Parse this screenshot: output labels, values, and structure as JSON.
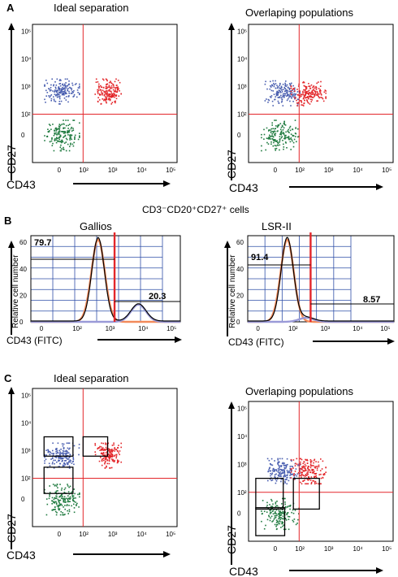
{
  "figure": {
    "panels": [
      {
        "letter": "A",
        "title_left": "Ideal separation",
        "title_right": "Overlaping populations"
      },
      {
        "letter": "B",
        "title_center": "CD3⁻CD20⁺CD27⁺ cells",
        "title_left": "Gallios",
        "title_right": "LSR-II"
      },
      {
        "letter": "C",
        "title_left": "Ideal separation",
        "title_right": "Overlaping populations"
      }
    ],
    "colors": {
      "blue_population": "#4a5fb0",
      "red_population": "#e3262a",
      "green_population": "#1f7a3f",
      "gate_line": "#e3262a",
      "orange_curve": "#f28a5a",
      "lilac_curve": "#9a9ad8",
      "grid_blue": "#2f4fa8"
    }
  },
  "chart_data": [
    {
      "type": "scatter",
      "panel": "A-left",
      "title": "Ideal separation",
      "xlabel": "CD43",
      "ylabel": "CD27",
      "xticks": [
        "0",
        "10²",
        "10³",
        "10⁴",
        "10⁵"
      ],
      "yticks": [
        "0",
        "10²",
        "10³",
        "10⁴",
        "10⁵"
      ],
      "series": [
        {
          "color": "blue",
          "cx": 0,
          "cy": 700
        },
        {
          "color": "red",
          "cx": 700,
          "cy": 700
        },
        {
          "color": "green",
          "cx": 0,
          "cy": 0
        }
      ],
      "gates": {
        "x": 100,
        "y": 100
      }
    },
    {
      "type": "scatter",
      "panel": "A-right",
      "title": "Overlaping populations",
      "xlabel": "CD43",
      "ylabel": "CD27",
      "xticks": [
        "0",
        "10²",
        "10³",
        "10⁴",
        "10⁵"
      ],
      "yticks": [
        "0",
        "10²",
        "10³",
        "10⁴",
        "10⁵"
      ],
      "series": [
        {
          "color": "blue",
          "cx": 20,
          "cy": 600
        },
        {
          "color": "red",
          "cx": 200,
          "cy": 600
        },
        {
          "color": "green",
          "cx": 10,
          "cy": 0
        }
      ],
      "gates": {
        "x": 100,
        "y": 100
      }
    },
    {
      "type": "line",
      "panel": "B-left",
      "title": "Gallios",
      "xlabel": "CD43 (FITC)",
      "ylabel": "Relative cell number",
      "xticks": [
        "0",
        "10²",
        "10³",
        "10⁴",
        "10⁵"
      ],
      "yticks": [
        "0",
        "20",
        "40",
        "60"
      ],
      "ylim": [
        0,
        65
      ],
      "annotations": [
        "79.7",
        "20.3"
      ]
    },
    {
      "type": "line",
      "panel": "B-right",
      "title": "LSR-II",
      "xlabel": "CD43 (FITC)",
      "ylabel": "Relative cell number",
      "xticks": [
        "0",
        "10²",
        "10³",
        "10⁴",
        "10⁵"
      ],
      "yticks": [
        "0",
        "20",
        "40",
        "60"
      ],
      "ylim": [
        0,
        65
      ],
      "annotations": [
        "91.4",
        "8.57"
      ]
    },
    {
      "type": "scatter",
      "panel": "C-left",
      "title": "Ideal separation",
      "xlabel": "CD43",
      "ylabel": "CD27",
      "xticks": [
        "0",
        "10²",
        "10³",
        "10⁴",
        "10⁵"
      ],
      "yticks": [
        "0",
        "10²",
        "10³",
        "10⁴",
        "10⁵"
      ],
      "series": [
        {
          "color": "blue",
          "cx": 0,
          "cy": 700
        },
        {
          "color": "red",
          "cx": 700,
          "cy": 700
        },
        {
          "color": "green",
          "cx": 0,
          "cy": 0
        }
      ],
      "gates": {
        "x": 100,
        "y": 100
      }
    },
    {
      "type": "scatter",
      "panel": "C-right",
      "title": "Overlaping populations",
      "xlabel": "CD43",
      "ylabel": "CD27",
      "xticks": [
        "0",
        "10²",
        "10³",
        "10⁴",
        "10⁵"
      ],
      "yticks": [
        "0",
        "10²",
        "10³",
        "10⁴",
        "10⁵"
      ],
      "series": [
        {
          "color": "blue",
          "cx": 20,
          "cy": 600
        },
        {
          "color": "red",
          "cx": 200,
          "cy": 600
        },
        {
          "color": "green",
          "cx": 10,
          "cy": 0
        }
      ],
      "gates": {
        "x": 100,
        "y": 100
      }
    }
  ]
}
